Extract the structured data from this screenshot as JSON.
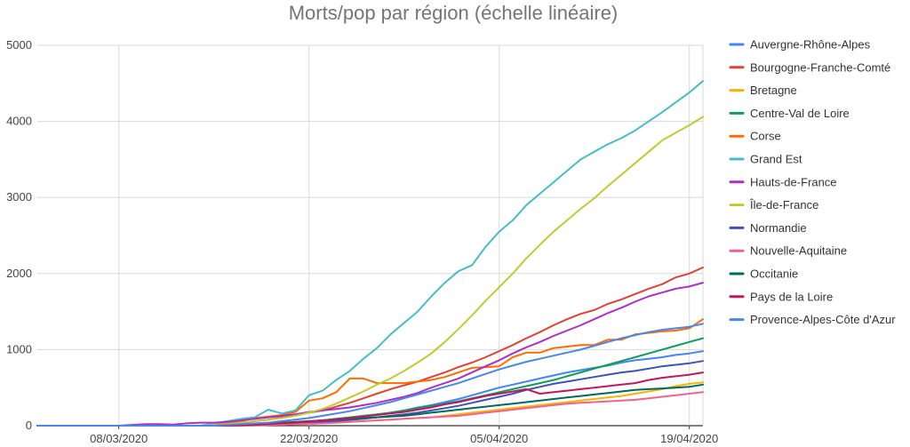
{
  "chart_data": {
    "type": "line",
    "title": "Morts/pop par région (échelle linéaire)",
    "xlabel": "",
    "ylabel": "",
    "ylim": [
      0,
      5000
    ],
    "yticks": [
      0,
      1000,
      2000,
      3000,
      4000,
      5000
    ],
    "xtick_labels": [
      "08/03/2020",
      "22/03/2020",
      "05/04/2020",
      "19/04/2020"
    ],
    "xtick_indices": [
      6,
      20,
      34,
      48
    ],
    "grid": true,
    "legend_position": "right",
    "x": [
      "02/03",
      "03/03",
      "04/03",
      "05/03",
      "06/03",
      "07/03",
      "08/03",
      "09/03",
      "10/03",
      "11/03",
      "12/03",
      "13/03",
      "14/03",
      "15/03",
      "16/03",
      "17/03",
      "18/03",
      "19/03",
      "20/03",
      "21/03",
      "22/03",
      "23/03",
      "24/03",
      "25/03",
      "26/03",
      "27/03",
      "28/03",
      "29/03",
      "30/03",
      "31/03",
      "01/04",
      "02/04",
      "03/04",
      "04/04",
      "05/04",
      "06/04",
      "07/04",
      "08/04",
      "09/04",
      "10/04",
      "11/04",
      "12/04",
      "13/04",
      "14/04",
      "15/04",
      "16/04",
      "17/04",
      "18/04",
      "19/04",
      "20/04"
    ],
    "series": [
      {
        "name": "Auvergne-Rhône-Alpes",
        "color": "#4285f4",
        "values": [
          0,
          0,
          0,
          0,
          0,
          0,
          0,
          0,
          0,
          0,
          0,
          0,
          0,
          0,
          5,
          10,
          15,
          20,
          30,
          40,
          55,
          70,
          85,
          100,
          120,
          145,
          170,
          200,
          240,
          270,
          310,
          350,
          400,
          450,
          500,
          540,
          580,
          620,
          660,
          700,
          730,
          760,
          790,
          830,
          860,
          880,
          900,
          930,
          950,
          980
        ]
      },
      {
        "name": "Bourgogne-Franche-Comté",
        "color": "#db4437",
        "values": [
          0,
          0,
          0,
          0,
          0,
          0,
          0,
          0,
          0,
          0,
          0,
          0,
          0,
          0,
          20,
          40,
          60,
          80,
          110,
          140,
          170,
          200,
          250,
          300,
          360,
          420,
          480,
          530,
          580,
          640,
          700,
          770,
          830,
          900,
          980,
          1060,
          1150,
          1230,
          1320,
          1400,
          1470,
          1520,
          1600,
          1660,
          1730,
          1800,
          1860,
          1950,
          2000,
          2080
        ]
      },
      {
        "name": "Bretagne",
        "color": "#f4b400",
        "values": [
          0,
          0,
          0,
          0,
          0,
          0,
          0,
          0,
          0,
          0,
          0,
          0,
          0,
          0,
          0,
          2,
          5,
          10,
          15,
          20,
          25,
          30,
          40,
          50,
          60,
          70,
          80,
          90,
          100,
          110,
          130,
          150,
          170,
          190,
          210,
          230,
          250,
          270,
          290,
          310,
          330,
          350,
          370,
          390,
          420,
          450,
          480,
          520,
          550,
          570
        ]
      },
      {
        "name": "Centre-Val de Loire",
        "color": "#0f9d58",
        "values": [
          0,
          0,
          0,
          0,
          0,
          0,
          0,
          0,
          0,
          0,
          0,
          0,
          0,
          0,
          2,
          5,
          10,
          20,
          30,
          40,
          55,
          70,
          90,
          110,
          130,
          150,
          170,
          200,
          230,
          260,
          290,
          320,
          360,
          400,
          440,
          480,
          520,
          560,
          600,
          650,
          700,
          750,
          800,
          850,
          900,
          950,
          1000,
          1050,
          1100,
          1150
        ]
      },
      {
        "name": "Corse",
        "color": "#ff6d00",
        "values": [
          0,
          0,
          0,
          0,
          0,
          0,
          0,
          0,
          0,
          0,
          0,
          0,
          0,
          20,
          40,
          60,
          100,
          120,
          140,
          180,
          330,
          360,
          440,
          620,
          620,
          560,
          560,
          560,
          580,
          600,
          640,
          700,
          760,
          770,
          780,
          900,
          960,
          960,
          1020,
          1040,
          1060,
          1060,
          1130,
          1130,
          1200,
          1220,
          1240,
          1250,
          1280,
          1400
        ]
      },
      {
        "name": "Grand Est",
        "color": "#46bdc6",
        "values": [
          0,
          0,
          0,
          0,
          0,
          0,
          0,
          0,
          0,
          0,
          0,
          0,
          0,
          30,
          60,
          90,
          110,
          210,
          160,
          200,
          400,
          460,
          600,
          720,
          880,
          1020,
          1200,
          1350,
          1500,
          1700,
          1880,
          2030,
          2110,
          2350,
          2550,
          2700,
          2900,
          3050,
          3200,
          3350,
          3500,
          3600,
          3700,
          3780,
          3880,
          4000,
          4120,
          4250,
          4380,
          4530
        ]
      },
      {
        "name": "Hauts-de-France",
        "color": "#ab30c4",
        "values": [
          0,
          0,
          0,
          0,
          0,
          0,
          0,
          10,
          20,
          20,
          15,
          30,
          40,
          40,
          50,
          70,
          90,
          110,
          130,
          150,
          180,
          200,
          220,
          240,
          270,
          300,
          340,
          380,
          430,
          500,
          560,
          620,
          700,
          780,
          860,
          950,
          1030,
          1100,
          1180,
          1250,
          1320,
          1400,
          1480,
          1550,
          1630,
          1700,
          1750,
          1800,
          1830,
          1880
        ]
      },
      {
        "name": "Île-de-France",
        "color": "#c0ca33",
        "values": [
          0,
          0,
          0,
          0,
          0,
          0,
          0,
          0,
          0,
          0,
          0,
          0,
          0,
          10,
          20,
          40,
          60,
          80,
          100,
          130,
          170,
          220,
          290,
          370,
          450,
          540,
          620,
          720,
          830,
          950,
          1100,
          1270,
          1450,
          1640,
          1820,
          2000,
          2200,
          2380,
          2550,
          2700,
          2850,
          2990,
          3150,
          3300,
          3450,
          3600,
          3750,
          3850,
          3950,
          4060
        ]
      },
      {
        "name": "Normandie",
        "color": "#3f51b5",
        "values": [
          0,
          0,
          0,
          0,
          0,
          0,
          0,
          0,
          0,
          0,
          0,
          0,
          0,
          0,
          0,
          5,
          10,
          15,
          20,
          30,
          40,
          50,
          60,
          75,
          90,
          110,
          130,
          150,
          170,
          200,
          230,
          260,
          300,
          340,
          380,
          420,
          470,
          510,
          550,
          580,
          610,
          640,
          670,
          700,
          720,
          750,
          780,
          800,
          820,
          850
        ]
      },
      {
        "name": "Nouvelle-Aquitaine",
        "color": "#f06292",
        "values": [
          0,
          0,
          0,
          0,
          0,
          0,
          0,
          0,
          0,
          0,
          0,
          0,
          0,
          0,
          0,
          2,
          5,
          10,
          15,
          20,
          25,
          30,
          40,
          50,
          60,
          70,
          80,
          90,
          100,
          110,
          120,
          130,
          150,
          170,
          190,
          210,
          230,
          250,
          270,
          290,
          300,
          310,
          320,
          330,
          340,
          360,
          380,
          400,
          420,
          440
        ]
      },
      {
        "name": "Occitanie",
        "color": "#00695c",
        "values": [
          0,
          0,
          0,
          0,
          0,
          0,
          0,
          0,
          0,
          0,
          0,
          0,
          0,
          0,
          5,
          10,
          20,
          30,
          40,
          50,
          60,
          70,
          80,
          90,
          100,
          110,
          120,
          130,
          150,
          170,
          190,
          210,
          230,
          250,
          270,
          290,
          310,
          330,
          350,
          370,
          390,
          410,
          430,
          450,
          470,
          480,
          490,
          500,
          510,
          540
        ]
      },
      {
        "name": "Pays de la Loire",
        "color": "#c2185b",
        "values": [
          0,
          0,
          0,
          0,
          0,
          0,
          0,
          0,
          0,
          0,
          0,
          0,
          0,
          0,
          0,
          5,
          10,
          20,
          30,
          40,
          55,
          70,
          85,
          100,
          120,
          140,
          160,
          180,
          210,
          240,
          280,
          310,
          350,
          390,
          420,
          450,
          480,
          420,
          440,
          460,
          480,
          500,
          520,
          540,
          560,
          600,
          630,
          650,
          670,
          700
        ]
      },
      {
        "name": "Provence-Alpes-Côte d'Azur",
        "color": "#4a86e8",
        "values": [
          0,
          0,
          0,
          0,
          0,
          0,
          0,
          0,
          0,
          0,
          0,
          0,
          0,
          0,
          10,
          20,
          30,
          40,
          60,
          80,
          100,
          130,
          160,
          190,
          230,
          270,
          310,
          360,
          410,
          460,
          510,
          560,
          620,
          680,
          740,
          790,
          840,
          880,
          920,
          960,
          1000,
          1050,
          1100,
          1150,
          1190,
          1230,
          1260,
          1280,
          1300,
          1340
        ]
      }
    ]
  }
}
